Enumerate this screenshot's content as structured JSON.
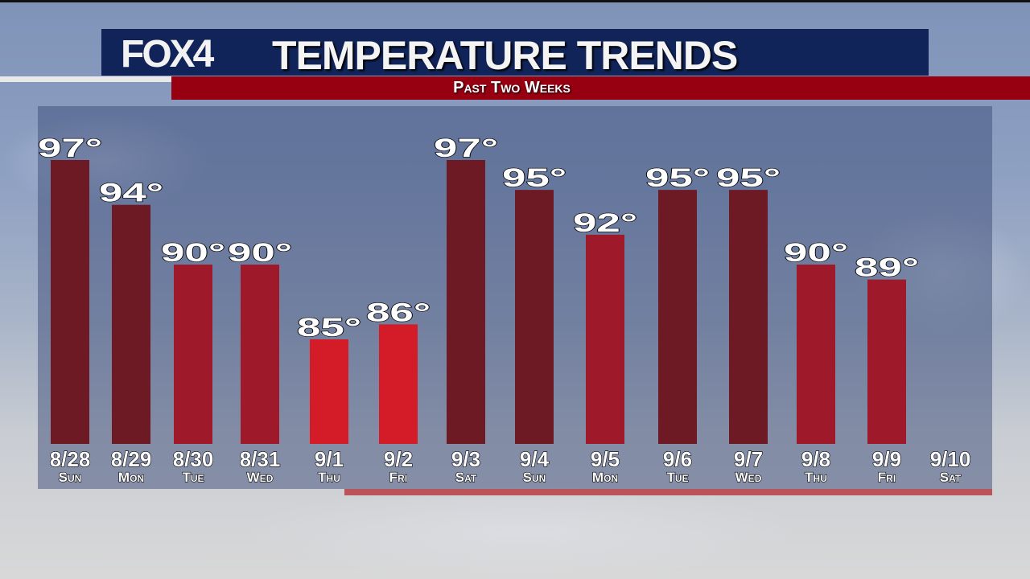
{
  "header": {
    "logo": "FOX4",
    "title": "TEMPERATURE TRENDS",
    "subtitle": "Past Two Weeks"
  },
  "chart_data": {
    "type": "bar",
    "title": "TEMPERATURE TRENDS",
    "subtitle": "Past Two Weeks",
    "categories": [
      "8/28",
      "8/29",
      "8/30",
      "8/31",
      "9/1",
      "9/2",
      "9/3",
      "9/4",
      "9/5",
      "9/6",
      "9/7",
      "9/8",
      "9/9",
      "9/10"
    ],
    "days": [
      "Sun",
      "Mon",
      "Tue",
      "Wed",
      "Thu",
      "Fri",
      "Sat",
      "Sun",
      "Mon",
      "Tue",
      "Wed",
      "Thu",
      "Fri",
      "Sat"
    ],
    "values": [
      97,
      94,
      90,
      90,
      85,
      86,
      97,
      95,
      92,
      95,
      95,
      90,
      89,
      null
    ],
    "value_suffix": "°",
    "ylim": [
      78,
      100
    ],
    "grid": false,
    "colors": {
      "hot": "#6e1a24",
      "warm": "#9e1a2a",
      "mild": "#d41c28"
    }
  }
}
